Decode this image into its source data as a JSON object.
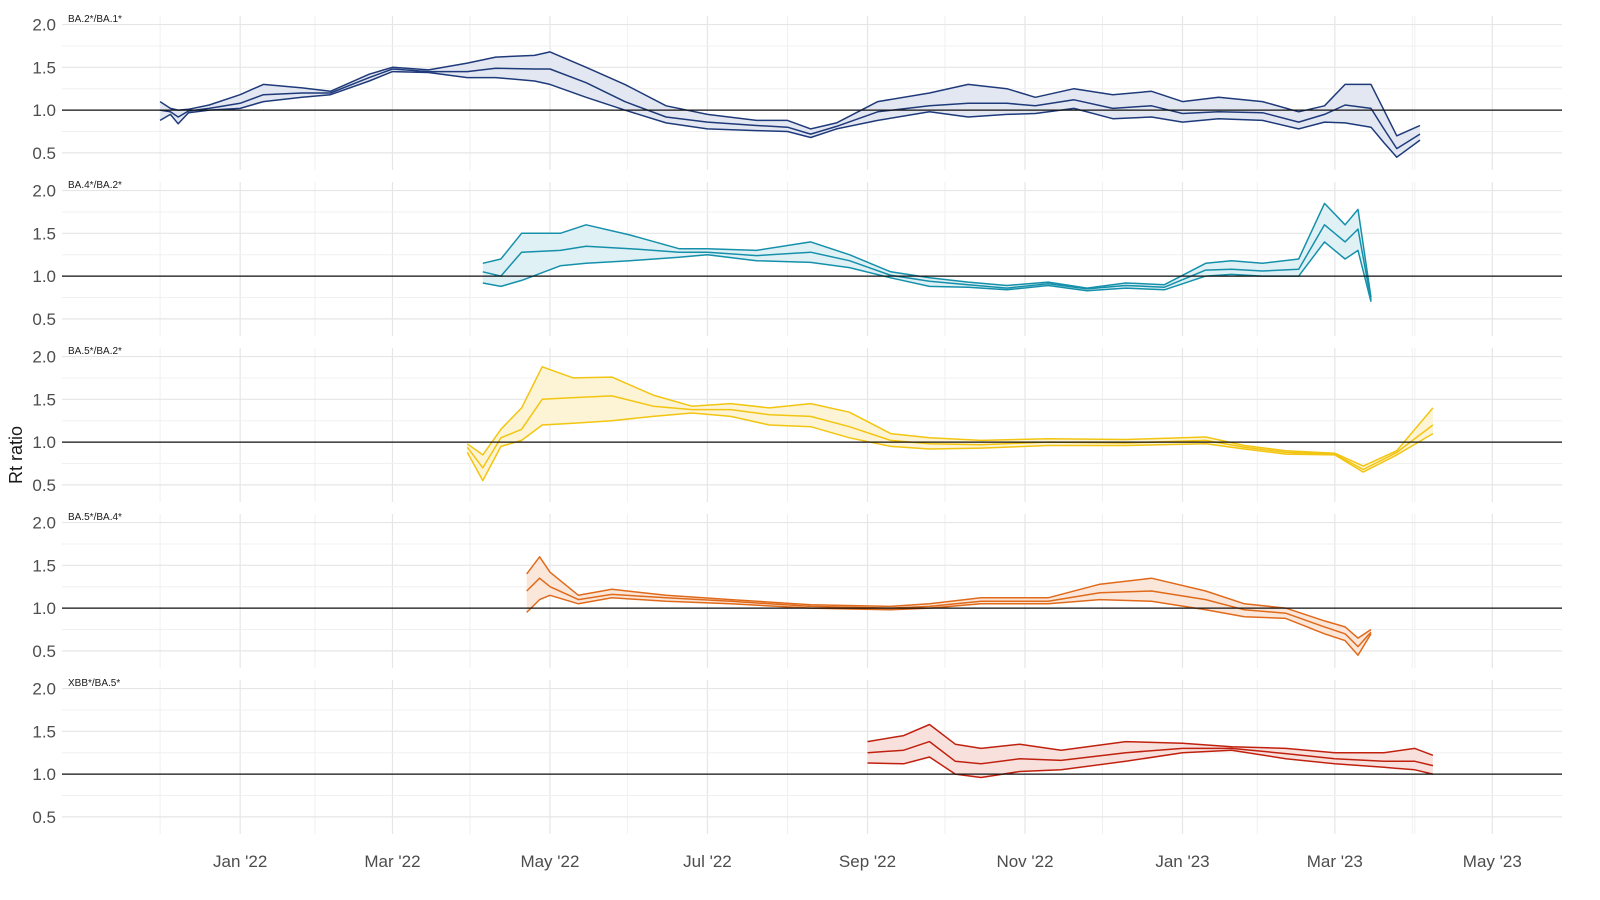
{
  "chart_data": {
    "type": "line",
    "ylabel": "Rt ratio",
    "xlabel": "",
    "ylim": [
      0.3,
      2.1
    ],
    "y_ticks": [
      2.0,
      1.5,
      1.0,
      0.5
    ],
    "y_tick_labels": [
      "2.0",
      "1.5",
      "1.0",
      "0.5"
    ],
    "x_range": [
      "2021-10-24",
      "2023-05-28"
    ],
    "x_ticks": [
      {
        "date": "2022-01-01",
        "label": "Jan '22"
      },
      {
        "date": "2022-03-01",
        "label": "Mar '22"
      },
      {
        "date": "2022-05-01",
        "label": "May '22"
      },
      {
        "date": "2022-07-01",
        "label": "Jul '22"
      },
      {
        "date": "2022-09-01",
        "label": "Sep '22"
      },
      {
        "date": "2022-11-01",
        "label": "Nov '22"
      },
      {
        "date": "2023-01-01",
        "label": "Jan '23"
      },
      {
        "date": "2023-03-01",
        "label": "Mar '23"
      },
      {
        "date": "2023-05-01",
        "label": "May '23"
      }
    ],
    "reference_line": 1.0,
    "grid": true,
    "legend": "none",
    "panels": [
      {
        "label": "BA.2*/BA.1*",
        "color": "#1f3a7a",
        "fill": "#e3e7f1",
        "points": [
          [
            "2021-12-01",
            0.88,
            1.1,
            1.0
          ],
          [
            "2021-12-05",
            0.95,
            1.02,
            0.98
          ],
          [
            "2021-12-08",
            0.84,
            1.0,
            0.92
          ],
          [
            "2021-12-12",
            0.97,
            1.01,
            0.99
          ],
          [
            "2021-12-20",
            1.0,
            1.06,
            1.02
          ],
          [
            "2022-01-01",
            1.02,
            1.18,
            1.08
          ],
          [
            "2022-01-10",
            1.1,
            1.3,
            1.18
          ],
          [
            "2022-01-25",
            1.15,
            1.26,
            1.2
          ],
          [
            "2022-02-05",
            1.18,
            1.22,
            1.2
          ],
          [
            "2022-02-20",
            1.34,
            1.42,
            1.38
          ],
          [
            "2022-03-01",
            1.45,
            1.5,
            1.48
          ],
          [
            "2022-03-15",
            1.44,
            1.47,
            1.45
          ],
          [
            "2022-03-30",
            1.38,
            1.55,
            1.45
          ],
          [
            "2022-04-10",
            1.38,
            1.62,
            1.49
          ],
          [
            "2022-04-25",
            1.34,
            1.64,
            1.48
          ],
          [
            "2022-05-01",
            1.3,
            1.68,
            1.48
          ],
          [
            "2022-05-15",
            1.15,
            1.5,
            1.32
          ],
          [
            "2022-05-30",
            1.0,
            1.3,
            1.1
          ],
          [
            "2022-06-15",
            0.85,
            1.05,
            0.92
          ],
          [
            "2022-07-01",
            0.78,
            0.95,
            0.86
          ],
          [
            "2022-07-20",
            0.76,
            0.88,
            0.82
          ],
          [
            "2022-08-01",
            0.75,
            0.88,
            0.8
          ],
          [
            "2022-08-10",
            0.68,
            0.78,
            0.72
          ],
          [
            "2022-08-20",
            0.78,
            0.85,
            0.81
          ],
          [
            "2022-09-05",
            0.88,
            1.1,
            0.98
          ],
          [
            "2022-09-25",
            0.98,
            1.2,
            1.05
          ],
          [
            "2022-10-10",
            0.92,
            1.3,
            1.08
          ],
          [
            "2022-10-25",
            0.95,
            1.25,
            1.08
          ],
          [
            "2022-11-05",
            0.96,
            1.15,
            1.05
          ],
          [
            "2022-11-20",
            1.02,
            1.25,
            1.12
          ],
          [
            "2022-12-05",
            0.9,
            1.18,
            1.02
          ],
          [
            "2022-12-20",
            0.92,
            1.22,
            1.05
          ],
          [
            "2023-01-01",
            0.86,
            1.1,
            0.96
          ],
          [
            "2023-01-15",
            0.9,
            1.15,
            0.98
          ],
          [
            "2023-02-01",
            0.88,
            1.1,
            0.97
          ],
          [
            "2023-02-15",
            0.78,
            0.98,
            0.86
          ],
          [
            "2023-02-25",
            0.86,
            1.05,
            0.95
          ],
          [
            "2023-03-05",
            0.85,
            1.3,
            1.06
          ],
          [
            "2023-03-15",
            0.8,
            1.3,
            1.02
          ],
          [
            "2023-03-20",
            0.62,
            1.0,
            0.78
          ],
          [
            "2023-03-25",
            0.45,
            0.7,
            0.55
          ],
          [
            "2023-04-03",
            0.65,
            0.82,
            0.72
          ]
        ]
      },
      {
        "label": "BA.4*/BA.2*",
        "color": "#1590ab",
        "fill": "#e0f1f5",
        "points": [
          [
            "2022-04-05",
            0.92,
            1.15,
            1.05
          ],
          [
            "2022-04-12",
            0.88,
            1.2,
            1.0
          ],
          [
            "2022-04-20",
            0.95,
            1.5,
            1.28
          ],
          [
            "2022-05-05",
            1.12,
            1.5,
            1.3
          ],
          [
            "2022-05-15",
            1.15,
            1.6,
            1.35
          ],
          [
            "2022-06-01",
            1.18,
            1.48,
            1.32
          ],
          [
            "2022-06-20",
            1.22,
            1.32,
            1.28
          ],
          [
            "2022-07-01",
            1.25,
            1.32,
            1.28
          ],
          [
            "2022-07-20",
            1.18,
            1.3,
            1.24
          ],
          [
            "2022-08-10",
            1.16,
            1.4,
            1.28
          ],
          [
            "2022-08-25",
            1.1,
            1.25,
            1.18
          ],
          [
            "2022-09-10",
            0.98,
            1.05,
            1.01
          ],
          [
            "2022-09-25",
            0.88,
            0.98,
            0.94
          ],
          [
            "2022-10-10",
            0.87,
            0.93,
            0.9
          ],
          [
            "2022-10-25",
            0.84,
            0.89,
            0.86
          ],
          [
            "2022-11-10",
            0.89,
            0.93,
            0.91
          ],
          [
            "2022-11-25",
            0.83,
            0.86,
            0.85
          ],
          [
            "2022-12-10",
            0.86,
            0.92,
            0.89
          ],
          [
            "2022-12-25",
            0.84,
            0.9,
            0.87
          ],
          [
            "2023-01-10",
            1.0,
            1.15,
            1.07
          ],
          [
            "2023-01-20",
            1.02,
            1.18,
            1.08
          ],
          [
            "2023-02-01",
            1.0,
            1.15,
            1.06
          ],
          [
            "2023-02-15",
            1.0,
            1.2,
            1.08
          ],
          [
            "2023-02-25",
            1.4,
            1.85,
            1.6
          ],
          [
            "2023-03-05",
            1.2,
            1.6,
            1.4
          ],
          [
            "2023-03-10",
            1.3,
            1.78,
            1.55
          ],
          [
            "2023-03-15",
            0.7,
            0.75,
            0.72
          ]
        ]
      },
      {
        "label": "BA.5*/BA.2*",
        "color": "#f2c511",
        "fill": "#fdf4d5",
        "points": [
          [
            "2022-03-30",
            0.88,
            0.98,
            0.94
          ],
          [
            "2022-04-05",
            0.55,
            0.85,
            0.7
          ],
          [
            "2022-04-12",
            0.95,
            1.15,
            1.05
          ],
          [
            "2022-04-20",
            1.02,
            1.4,
            1.15
          ],
          [
            "2022-04-28",
            1.2,
            1.88,
            1.5
          ],
          [
            "2022-05-10",
            1.22,
            1.75,
            1.52
          ],
          [
            "2022-05-25",
            1.25,
            1.76,
            1.54
          ],
          [
            "2022-06-10",
            1.3,
            1.55,
            1.42
          ],
          [
            "2022-06-25",
            1.34,
            1.42,
            1.38
          ],
          [
            "2022-07-10",
            1.3,
            1.45,
            1.38
          ],
          [
            "2022-07-25",
            1.2,
            1.4,
            1.32
          ],
          [
            "2022-08-10",
            1.18,
            1.45,
            1.3
          ],
          [
            "2022-08-25",
            1.05,
            1.35,
            1.18
          ],
          [
            "2022-09-10",
            0.95,
            1.1,
            1.02
          ],
          [
            "2022-09-25",
            0.92,
            1.05,
            0.98
          ],
          [
            "2022-10-15",
            0.93,
            1.02,
            0.97
          ],
          [
            "2022-11-10",
            0.96,
            1.04,
            1.0
          ],
          [
            "2022-12-10",
            0.96,
            1.03,
            0.99
          ],
          [
            "2023-01-10",
            0.98,
            1.06,
            1.02
          ],
          [
            "2023-01-25",
            0.92,
            0.96,
            0.94
          ],
          [
            "2023-02-10",
            0.86,
            0.9,
            0.88
          ],
          [
            "2023-03-01",
            0.85,
            0.87,
            0.86
          ],
          [
            "2023-03-12",
            0.65,
            0.72,
            0.68
          ],
          [
            "2023-03-25",
            0.85,
            0.9,
            0.88
          ],
          [
            "2023-04-08",
            1.1,
            1.4,
            1.2
          ]
        ]
      },
      {
        "label": "BA.5*/BA.4*",
        "color": "#e06a1b",
        "fill": "#fbe7da",
        "points": [
          [
            "2022-04-22",
            0.95,
            1.4,
            1.2
          ],
          [
            "2022-04-27",
            1.1,
            1.6,
            1.35
          ],
          [
            "2022-05-01",
            1.15,
            1.42,
            1.25
          ],
          [
            "2022-05-12",
            1.05,
            1.15,
            1.1
          ],
          [
            "2022-05-25",
            1.12,
            1.22,
            1.16
          ],
          [
            "2022-06-15",
            1.08,
            1.15,
            1.12
          ],
          [
            "2022-07-10",
            1.05,
            1.1,
            1.08
          ],
          [
            "2022-08-10",
            1.0,
            1.04,
            1.02
          ],
          [
            "2022-09-10",
            0.98,
            1.02,
            1.0
          ],
          [
            "2022-09-25",
            1.0,
            1.05,
            1.02
          ],
          [
            "2022-10-15",
            1.05,
            1.12,
            1.08
          ],
          [
            "2022-11-10",
            1.05,
            1.12,
            1.08
          ],
          [
            "2022-11-30",
            1.1,
            1.28,
            1.18
          ],
          [
            "2022-12-20",
            1.08,
            1.35,
            1.2
          ],
          [
            "2023-01-10",
            0.98,
            1.2,
            1.1
          ],
          [
            "2023-01-25",
            0.9,
            1.05,
            0.98
          ],
          [
            "2023-02-10",
            0.88,
            1.0,
            0.94
          ],
          [
            "2023-02-25",
            0.7,
            0.85,
            0.78
          ],
          [
            "2023-03-05",
            0.62,
            0.78,
            0.7
          ],
          [
            "2023-03-10",
            0.45,
            0.65,
            0.55
          ],
          [
            "2023-03-15",
            0.7,
            0.75,
            0.72
          ]
        ]
      },
      {
        "label": "XBB*/BA.5*",
        "color": "#c0210f",
        "fill": "#f8e0dd",
        "points": [
          [
            "2022-09-01",
            1.13,
            1.38,
            1.25
          ],
          [
            "2022-09-15",
            1.12,
            1.45,
            1.28
          ],
          [
            "2022-09-25",
            1.2,
            1.58,
            1.38
          ],
          [
            "2022-10-05",
            1.0,
            1.35,
            1.15
          ],
          [
            "2022-10-15",
            0.96,
            1.3,
            1.12
          ],
          [
            "2022-10-30",
            1.03,
            1.35,
            1.18
          ],
          [
            "2022-11-15",
            1.05,
            1.28,
            1.16
          ],
          [
            "2022-12-10",
            1.15,
            1.38,
            1.25
          ],
          [
            "2023-01-01",
            1.25,
            1.36,
            1.3
          ],
          [
            "2023-01-20",
            1.28,
            1.32,
            1.3
          ],
          [
            "2023-02-10",
            1.18,
            1.3,
            1.24
          ],
          [
            "2023-03-01",
            1.12,
            1.25,
            1.18
          ],
          [
            "2023-03-20",
            1.08,
            1.25,
            1.15
          ],
          [
            "2023-04-01",
            1.05,
            1.3,
            1.15
          ],
          [
            "2023-04-08",
            1.0,
            1.22,
            1.1
          ]
        ]
      }
    ]
  }
}
